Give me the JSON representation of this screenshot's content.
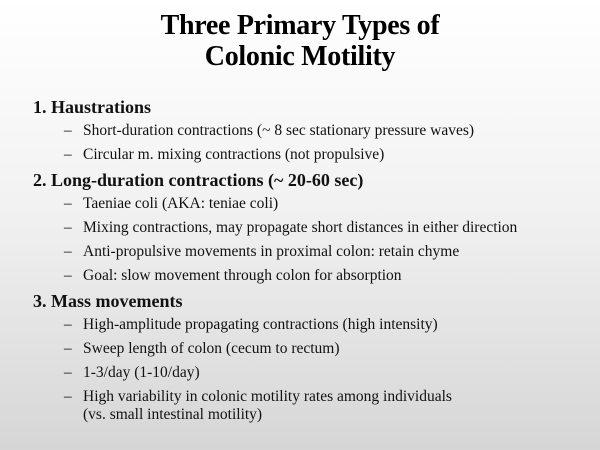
{
  "slide": {
    "title_line1": "Three Primary Types of",
    "title_line2": "Colonic Motility",
    "dash": "–",
    "sections": [
      {
        "heading": "1. Haustrations",
        "bullets": [
          [
            "Short-duration contractions (~ 8 sec stationary pressure waves)"
          ],
          [
            "Circular m. mixing contractions (not propulsive)"
          ]
        ]
      },
      {
        "heading": "2. Long-duration contractions (~ 20-60 sec)",
        "bullets": [
          [
            "Taeniae coli (AKA: teniae coli)"
          ],
          [
            "Mixing contractions, may propagate short distances in either direction"
          ],
          [
            "Anti-propulsive movements in proximal colon: retain chyme"
          ],
          [
            "Goal: slow movement through colon for absorption"
          ]
        ]
      },
      {
        "heading": "3. Mass movements",
        "bullets": [
          [
            "High-amplitude propagating contractions (high intensity)"
          ],
          [
            "Sweep length of colon (cecum to rectum)"
          ],
          [
            "1-3/day (1-10/day)"
          ],
          [
            "High variability in colonic motility rates among individuals",
            "(vs. small intestinal motility)"
          ]
        ]
      }
    ]
  }
}
